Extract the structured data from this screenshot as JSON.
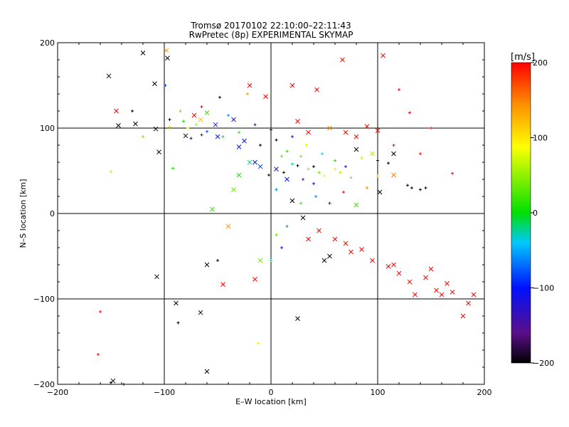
{
  "chart_data": {
    "type": "scatter",
    "title": "Tromsø 20170102 22:10:00–22:11:43",
    "subtitle": "RwPretec (8p) EXPERIMENTAL SKYMAP",
    "xlabel": "E–W location [km]",
    "ylabel": "N–S location [km]",
    "xlim": [
      -200,
      200
    ],
    "ylim": [
      -200,
      200
    ],
    "xticks": [
      "−200",
      "−100",
      "0",
      "100",
      "200"
    ],
    "yticks": [
      "−200",
      "−100",
      "0",
      "100",
      "200"
    ],
    "grid": true,
    "colorbar": {
      "label": "[m/s]",
      "range": [
        -200,
        200
      ],
      "ticks": [
        "−200",
        "−100",
        "0",
        "100",
        "200"
      ],
      "colormap": "rainbow-black-to-red"
    },
    "series": [
      {
        "marker": "x",
        "points": [
          [
            -152,
            161,
            -200
          ],
          [
            -120,
            188,
            -200
          ],
          [
            -98,
            191,
            140
          ],
          [
            -97,
            182,
            -200
          ],
          [
            -109,
            152,
            -200
          ],
          [
            -145,
            120,
            200
          ],
          [
            -143,
            103,
            -200
          ],
          [
            -127,
            105,
            -200
          ],
          [
            -108,
            99,
            -200
          ],
          [
            -105,
            72,
            -200
          ],
          [
            -80,
            91,
            -200
          ],
          [
            -72,
            115,
            200
          ],
          [
            -66,
            110,
            120
          ],
          [
            -60,
            118,
            20
          ],
          [
            -52,
            104,
            -120
          ],
          [
            -35,
            110,
            -120
          ],
          [
            -20,
            150,
            200
          ],
          [
            -5,
            137,
            200
          ],
          [
            -25,
            85,
            -100
          ],
          [
            -15,
            60,
            -100
          ],
          [
            -35,
            28,
            40
          ],
          [
            -40,
            -15,
            140
          ],
          [
            -60,
            -60,
            -200
          ],
          [
            -45,
            -83,
            200
          ],
          [
            -15,
            -77,
            200
          ],
          [
            -10,
            -55,
            40
          ],
          [
            -55,
            5,
            20
          ],
          [
            -107,
            -74,
            -200
          ],
          [
            -89,
            -105,
            -200
          ],
          [
            -66,
            -116,
            -200
          ],
          [
            -60,
            -185,
            -200
          ],
          [
            -148,
            -196,
            -200
          ],
          [
            20,
            150,
            200
          ],
          [
            43,
            145,
            200
          ],
          [
            67,
            180,
            200
          ],
          [
            105,
            185,
            200
          ],
          [
            25,
            108,
            200
          ],
          [
            35,
            95,
            200
          ],
          [
            55,
            100,
            150
          ],
          [
            70,
            95,
            200
          ],
          [
            80,
            90,
            200
          ],
          [
            90,
            102,
            200
          ],
          [
            100,
            97,
            200
          ],
          [
            80,
            75,
            -200
          ],
          [
            95,
            70,
            60
          ],
          [
            115,
            70,
            -200
          ],
          [
            115,
            45,
            150
          ],
          [
            102,
            25,
            -200
          ],
          [
            80,
            10,
            20
          ],
          [
            20,
            15,
            -200
          ],
          [
            30,
            -5,
            -200
          ],
          [
            45,
            -20,
            200
          ],
          [
            60,
            -30,
            200
          ],
          [
            70,
            -35,
            200
          ],
          [
            75,
            -45,
            200
          ],
          [
            85,
            -42,
            200
          ],
          [
            95,
            -55,
            200
          ],
          [
            110,
            -62,
            200
          ],
          [
            115,
            -60,
            200
          ],
          [
            120,
            -70,
            200
          ],
          [
            130,
            -80,
            200
          ],
          [
            135,
            -95,
            200
          ],
          [
            145,
            -75,
            200
          ],
          [
            150,
            -65,
            200
          ],
          [
            155,
            -90,
            200
          ],
          [
            165,
            -82,
            200
          ],
          [
            170,
            -92,
            200
          ],
          [
            185,
            -105,
            200
          ],
          [
            190,
            -95,
            200
          ],
          [
            180,
            -120,
            200
          ],
          [
            160,
            -95,
            200
          ],
          [
            55,
            -50,
            -200
          ],
          [
            50,
            -55,
            -200
          ],
          [
            35,
            -30,
            200
          ],
          [
            25,
            -123,
            -200
          ],
          [
            -20,
            60,
            -20
          ],
          [
            -10,
            55,
            -80
          ],
          [
            5,
            52,
            -120
          ],
          [
            15,
            40,
            -100
          ],
          [
            -30,
            45,
            10
          ],
          [
            -50,
            90,
            -110
          ],
          [
            -30,
            78,
            -100
          ]
        ]
      },
      {
        "marker": "+",
        "points": [
          [
            -160,
            -115,
            200
          ],
          [
            -162,
            -165,
            200
          ],
          [
            -150,
            -198,
            -200
          ],
          [
            -138,
            -200,
            -200
          ],
          [
            -130,
            120,
            -200
          ],
          [
            -150,
            49,
            60
          ],
          [
            -120,
            90,
            40
          ],
          [
            -99,
            150,
            -80
          ],
          [
            -95,
            110,
            -200
          ],
          [
            -85,
            120,
            40
          ],
          [
            -78,
            100,
            80
          ],
          [
            -92,
            53,
            10
          ],
          [
            -87,
            -128,
            -200
          ],
          [
            -12,
            -152,
            100
          ],
          [
            -22,
            140,
            140
          ],
          [
            -10,
            80,
            -200
          ],
          [
            5,
            86,
            -200
          ],
          [
            15,
            73,
            20
          ],
          [
            28,
            67,
            40
          ],
          [
            40,
            55,
            -200
          ],
          [
            45,
            48,
            40
          ],
          [
            60,
            52,
            100
          ],
          [
            70,
            55,
            -120
          ],
          [
            85,
            65,
            60
          ],
          [
            100,
            62,
            -200
          ],
          [
            110,
            59,
            -200
          ],
          [
            128,
            33,
            -200
          ],
          [
            132,
            30,
            -200
          ],
          [
            140,
            28,
            -200
          ],
          [
            145,
            30,
            -200
          ],
          [
            120,
            145,
            200
          ],
          [
            130,
            118,
            200
          ],
          [
            150,
            100,
            200
          ],
          [
            170,
            47,
            200
          ],
          [
            140,
            70,
            200
          ],
          [
            115,
            80,
            200
          ],
          [
            10,
            67,
            30
          ],
          [
            20,
            58,
            -20
          ],
          [
            35,
            52,
            50
          ],
          [
            50,
            44,
            80
          ],
          [
            65,
            48,
            60
          ],
          [
            75,
            42,
            40
          ],
          [
            30,
            40,
            -160
          ],
          [
            40,
            35,
            -100
          ],
          [
            5,
            28,
            -60
          ],
          [
            -2,
            45,
            -200
          ],
          [
            12,
            48,
            -200
          ],
          [
            25,
            56,
            -200
          ],
          [
            -30,
            95,
            10
          ],
          [
            -45,
            90,
            -20
          ],
          [
            -60,
            96,
            -80
          ],
          [
            -70,
            104,
            50
          ],
          [
            -65,
            92,
            -140
          ],
          [
            -75,
            88,
            -170
          ],
          [
            -82,
            108,
            0
          ],
          [
            -95,
            101,
            120
          ],
          [
            -65,
            125,
            200
          ],
          [
            -48,
            136,
            -200
          ],
          [
            5,
            -25,
            40
          ],
          [
            15,
            -15,
            -60
          ],
          [
            10,
            -40,
            -100
          ],
          [
            0,
            -55,
            -20
          ],
          [
            -50,
            -55,
            -200
          ],
          [
            28,
            12,
            20
          ],
          [
            42,
            20,
            -60
          ],
          [
            55,
            12,
            -120
          ],
          [
            68,
            25,
            200
          ],
          [
            90,
            30,
            150
          ],
          [
            100,
            44,
            120
          ],
          [
            60,
            62,
            0
          ],
          [
            48,
            70,
            -40
          ],
          [
            33,
            80,
            80
          ],
          [
            20,
            90,
            -120
          ],
          [
            0,
            98,
            -200
          ],
          [
            -15,
            104,
            -150
          ],
          [
            -40,
            115,
            -60
          ]
        ]
      }
    ]
  }
}
